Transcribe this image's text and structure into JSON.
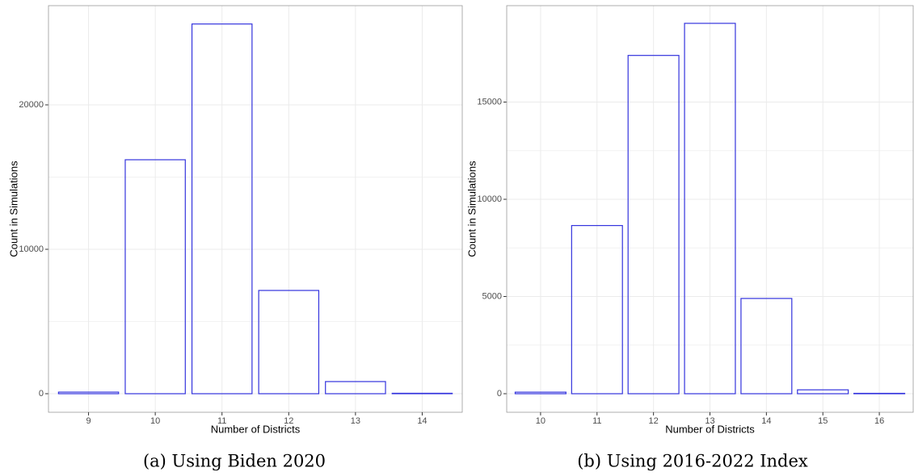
{
  "chart_data": [
    {
      "type": "bar",
      "x_label": "Number of Districts",
      "y_label": "Count in Simulations",
      "caption": "(a) Using Biden 2020",
      "categories": [
        "9",
        "10",
        "11",
        "12",
        "13",
        "14"
      ],
      "values": [
        110,
        16200,
        25600,
        7150,
        840,
        30
      ],
      "color": "#3333dd",
      "ylim": [
        -1285,
        26870
      ],
      "yticks": [
        0,
        10000,
        20000
      ],
      "grid": true
    },
    {
      "type": "bar",
      "x_label": "Number of Districts",
      "y_label": "Count in Simulations",
      "caption": "(b) Using 2016-2022 Index",
      "categories": [
        "10",
        "11",
        "12",
        "13",
        "14",
        "15",
        "16"
      ],
      "values": [
        80,
        8650,
        17400,
        19050,
        4900,
        200,
        20
      ],
      "color": "#3333dd",
      "ylim": [
        -954,
        19960
      ],
      "yticks": [
        0,
        5000,
        10000,
        15000
      ],
      "grid": true
    }
  ]
}
